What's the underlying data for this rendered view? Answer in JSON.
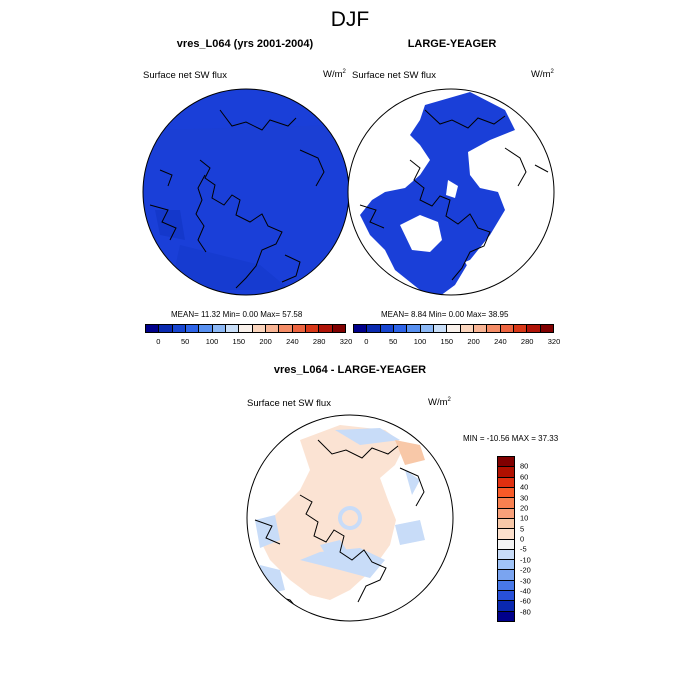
{
  "main_title": "DJF",
  "panels": [
    {
      "title": "vres_L064 (yrs 2001-2004)",
      "left_string": "Surface net SW flux",
      "units": "W/m",
      "units_sup": "2",
      "stats": "MEAN=  11.32  Min=   0.00  Max=  57.58"
    },
    {
      "title": "LARGE-YEAGER",
      "left_string": "Surface net SW flux",
      "units": "W/m",
      "units_sup": "2",
      "stats": "MEAN=   8.84  Min=   0.00  Max=  38.95"
    },
    {
      "title": "vres_L064 - LARGE-YEAGER",
      "left_string": "Surface net SW flux",
      "units": "W/m",
      "units_sup": "2",
      "stats": "MIN = -10.56 MAX =  37.33"
    }
  ],
  "chart_data": [
    {
      "type": "heatmap",
      "title": "vres_L064 (yrs 2001-2004)",
      "projection": "polar stereographic (north)",
      "variable": "Surface net SW flux",
      "units": "W/m2",
      "mean": 11.32,
      "min": 0.0,
      "max": 57.58,
      "colorbar_levels": [
        "0",
        "50",
        "100",
        "150",
        "200",
        "240",
        "280",
        "320"
      ],
      "colorbar_colors": [
        "#00008b",
        "#0a2ab0",
        "#1846d0",
        "#2e64e8",
        "#5890f0",
        "#8cb8f5",
        "#c8def8",
        "#f8f0ea",
        "#fad4bc",
        "#f8b494",
        "#f48c66",
        "#ec6440",
        "#d83818",
        "#b01408",
        "#800000"
      ]
    },
    {
      "type": "heatmap",
      "title": "LARGE-YEAGER",
      "projection": "polar stereographic (north)",
      "variable": "Surface net SW flux",
      "units": "W/m2",
      "mean": 8.84,
      "min": 0.0,
      "max": 38.95,
      "colorbar_levels": [
        "0",
        "50",
        "100",
        "150",
        "200",
        "240",
        "280",
        "320"
      ],
      "colorbar_colors": [
        "#00008b",
        "#0a2ab0",
        "#1846d0",
        "#2e64e8",
        "#5890f0",
        "#8cb8f5",
        "#c8def8",
        "#f8f0ea",
        "#fad4bc",
        "#f8b494",
        "#f48c66",
        "#ec6440",
        "#d83818",
        "#b01408",
        "#800000"
      ]
    },
    {
      "type": "heatmap",
      "title": "vres_L064 - LARGE-YEAGER",
      "projection": "polar stereographic (north)",
      "variable": "Surface net SW flux",
      "units": "W/m2",
      "min": -10.56,
      "max": 37.33,
      "colorbar_levels": [
        "80",
        "60",
        "40",
        "30",
        "20",
        "10",
        "5",
        "0",
        "-5",
        "-10",
        "-20",
        "-30",
        "-40",
        "-60",
        "-80"
      ],
      "colorbar_colors": [
        "#800000",
        "#b01000",
        "#e03010",
        "#f85a28",
        "#f88050",
        "#f8a07a",
        "#f8c8a8",
        "#fde0cc",
        "#f4f4f4",
        "#c8dcf8",
        "#a0c4f8",
        "#7aa4f0",
        "#4878e8",
        "#2850d8",
        "#0a28b0",
        "#00008b"
      ]
    }
  ]
}
